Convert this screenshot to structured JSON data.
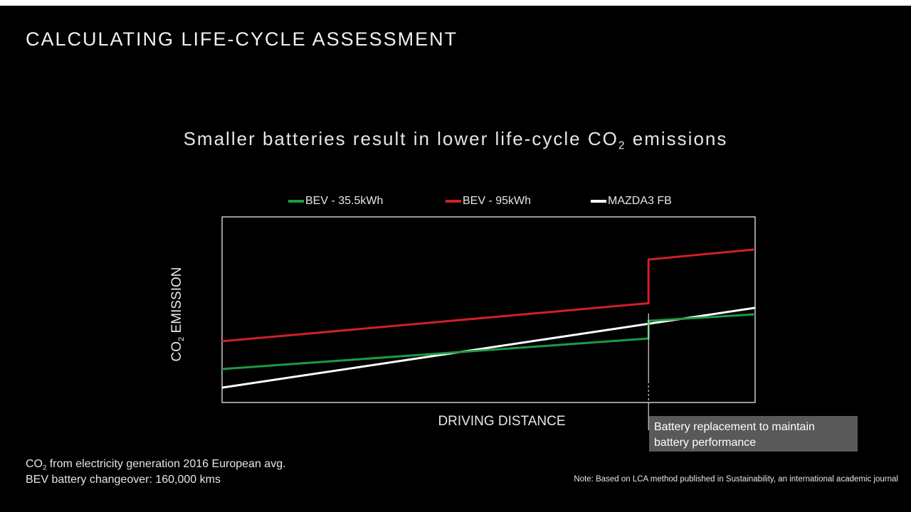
{
  "slide": {
    "title": "CALCULATING LIFE-CYCLE ASSESSMENT"
  },
  "colors": {
    "background": "#000000",
    "bev_small": "#1f9a45",
    "bev_large": "#d0202a",
    "mazda3": "#ffffff",
    "callout_bg": "#595959"
  },
  "chart_data": {
    "type": "line",
    "title": {
      "prefix": "Smaller batteries result in lower life-cycle CO",
      "subscript": "2",
      "suffix": " emissions"
    },
    "xlabel": "DRIVING DISTANCE",
    "ylabel": {
      "prefix": "CO",
      "subscript": "2",
      "suffix": " EMISSION"
    },
    "xlim": [
      0,
      100
    ],
    "ylim": [
      0,
      100
    ],
    "grid": false,
    "legend_placement": "top-center",
    "battery_changeover_x": 80,
    "series": [
      {
        "name": "BEV - 35.5kWh",
        "color_key": "bev_small",
        "points": [
          [
            0,
            18
          ],
          [
            80,
            34.5
          ],
          [
            80,
            44
          ],
          [
            100,
            47.5
          ]
        ]
      },
      {
        "name": "BEV - 95kWh",
        "color_key": "bev_large",
        "points": [
          [
            0,
            33
          ],
          [
            80,
            53.5
          ],
          [
            80,
            77
          ],
          [
            100,
            82.5
          ]
        ]
      },
      {
        "name": "MAZDA3 FB",
        "color_key": "mazda3",
        "points": [
          [
            0,
            8
          ],
          [
            100,
            51
          ]
        ]
      }
    ]
  },
  "callout": {
    "line1": "Battery replacement to maintain",
    "line2": "battery performance"
  },
  "notes": {
    "line1_prefix": "CO",
    "line1_subscript": "2",
    "line1_suffix": " from electricity generation 2016 European avg.",
    "line2": "BEV battery changeover: 160,000 kms"
  },
  "footnote": "Note: Based on LCA method published in Sustainability, an international academic journal"
}
